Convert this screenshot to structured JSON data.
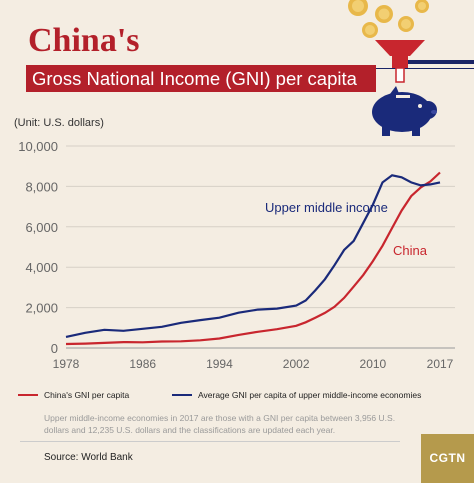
{
  "header": {
    "title": "China's",
    "subtitle": "Gross National Income (GNI) per capita",
    "unit": "(Unit:  U.S. dollars)"
  },
  "colors": {
    "china": "#c8262e",
    "upper_middle": "#1a2a7a",
    "accent": "#b3202a",
    "logo_bg": "#b59a4c"
  },
  "chart_data": {
    "type": "line",
    "x_tick_labels": [
      "1978",
      "1986",
      "1994",
      "2002",
      "2010",
      "2017"
    ],
    "y_tick_labels": [
      "0",
      "2,000",
      "4,000",
      "6,000",
      "8,000",
      "10,000"
    ],
    "xlim": [
      1978,
      2017
    ],
    "ylim": [
      0,
      10000
    ],
    "grid": "horizontal",
    "legend_position": "bottom",
    "series": [
      {
        "name": "China's GNI per capita",
        "annotation": "China",
        "x": [
          1978,
          1980,
          1982,
          1984,
          1986,
          1988,
          1990,
          1992,
          1994,
          1996,
          1998,
          2000,
          2002,
          2003,
          2004,
          2005,
          2006,
          2007,
          2008,
          2009,
          2010,
          2011,
          2012,
          2013,
          2014,
          2015,
          2016,
          2017
        ],
        "values": [
          200,
          220,
          250,
          290,
          280,
          320,
          330,
          380,
          470,
          650,
          800,
          930,
          1100,
          1270,
          1500,
          1740,
          2040,
          2480,
          3040,
          3620,
          4300,
          5060,
          5940,
          6800,
          7520,
          7950,
          8250,
          8690
        ]
      },
      {
        "name": "Average GNI per capita of upper middle-income economies",
        "annotation": "Upper middle income",
        "x": [
          1978,
          1980,
          1982,
          1984,
          1986,
          1988,
          1990,
          1992,
          1994,
          1996,
          1998,
          2000,
          2002,
          2003,
          2004,
          2005,
          2006,
          2007,
          2008,
          2009,
          2010,
          2011,
          2012,
          2013,
          2014,
          2015,
          2016,
          2017
        ],
        "values": [
          550,
          750,
          900,
          850,
          950,
          1050,
          1250,
          1380,
          1500,
          1750,
          1900,
          1950,
          2100,
          2350,
          2850,
          3400,
          4100,
          4850,
          5300,
          6200,
          7100,
          8200,
          8550,
          8450,
          8200,
          8050,
          8100,
          8200
        ]
      }
    ]
  },
  "legend": {
    "china_label": "China's GNI per capita",
    "upper_label": "Average GNI per capita of upper middle-income economies"
  },
  "note": "Upper middle-income economies in 2017 are those with a GNI per capita between 3,956 U.S. dollars and 12,235 U.S. dollars and the classifications are updated each year.",
  "source": "Source: World Bank",
  "logo": "CGTN"
}
